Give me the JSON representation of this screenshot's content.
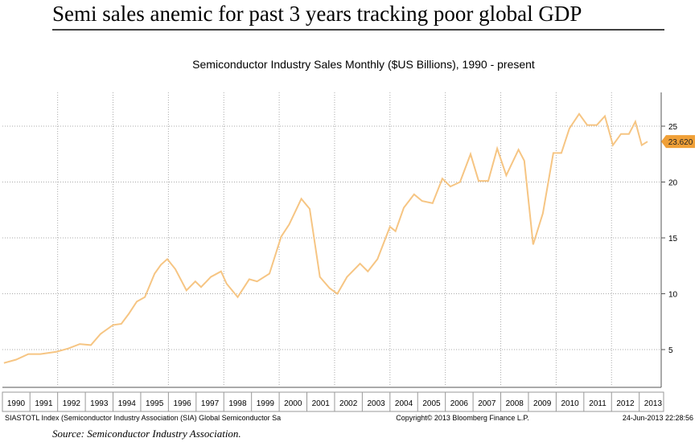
{
  "slide_title": "Semi sales anemic for past 3 years tracking poor global GDP",
  "source": "Source: Semiconductor Industry Association.",
  "footer": {
    "left": "SIASTOTL Index (Semiconductor Industry Association (SIA) Global Semiconductor Sa",
    "center": "Copyright© 2013 Bloomberg Finance L.P.",
    "right": "24-Jun-2013 22:28:56"
  },
  "chart_data": {
    "type": "line",
    "title": "Semiconductor Industry Sales Monthly ($US Billions), 1990 - present",
    "x": [
      1990.06,
      1990.5,
      1990.94,
      1991.37,
      1991.95,
      1992.39,
      1992.8,
      1993.2,
      1993.55,
      1994.0,
      1994.3,
      1994.57,
      1994.86,
      1995.15,
      1995.5,
      1995.73,
      1995.96,
      1996.25,
      1996.65,
      1996.97,
      1997.18,
      1997.53,
      1997.9,
      1998.1,
      1998.5,
      1998.92,
      1999.2,
      1999.65,
      2000.07,
      2000.36,
      2000.8,
      2001.1,
      2001.47,
      2001.82,
      2002.1,
      2002.45,
      2002.92,
      2003.2,
      2003.55,
      2004.0,
      2004.2,
      2004.5,
      2004.87,
      2005.16,
      2005.54,
      2005.89,
      2006.18,
      2006.53,
      2006.91,
      2007.2,
      2007.55,
      2007.87,
      2008.2,
      2008.64,
      2008.85,
      2009.17,
      2009.52,
      2009.9,
      2010.19,
      2010.48,
      2010.83,
      2011.12,
      2011.47,
      2011.76,
      2012.05,
      2012.34,
      2012.63,
      2012.86,
      2013.09,
      2013.3
    ],
    "series": [
      {
        "name": "SIASTOTL Index",
        "color": "#f6c583",
        "values": [
          3.8,
          4.1,
          4.6,
          4.6,
          4.8,
          5.1,
          5.5,
          5.4,
          6.4,
          7.2,
          7.3,
          8.2,
          9.3,
          9.7,
          11.8,
          12.6,
          13.1,
          12.2,
          10.3,
          11.1,
          10.6,
          11.5,
          12.0,
          10.9,
          9.7,
          11.3,
          11.1,
          11.8,
          15.1,
          16.2,
          18.5,
          17.6,
          11.5,
          10.5,
          10.0,
          11.5,
          12.7,
          12.0,
          13.1,
          16.0,
          15.6,
          17.7,
          18.9,
          18.3,
          18.1,
          20.3,
          19.6,
          20.0,
          22.5,
          20.1,
          20.1,
          23.0,
          20.6,
          22.9,
          21.9,
          14.4,
          17.2,
          22.6,
          22.6,
          24.8,
          26.1,
          25.1,
          25.1,
          25.9,
          23.3,
          24.3,
          24.3,
          25.4,
          23.3,
          23.62
        ]
      }
    ],
    "last_value_label": "23.620",
    "xlim": [
      1990,
      2013.75
    ],
    "xticks": [
      1990,
      1991,
      1992,
      1993,
      1994,
      1995,
      1996,
      1997,
      1998,
      1999,
      2000,
      2001,
      2002,
      2003,
      2004,
      2005,
      2006,
      2007,
      2008,
      2009,
      2010,
      2011,
      2012,
      2013
    ],
    "ylim": [
      2,
      28
    ],
    "yticks": [
      5,
      10,
      15,
      20,
      25
    ],
    "grid": true
  }
}
